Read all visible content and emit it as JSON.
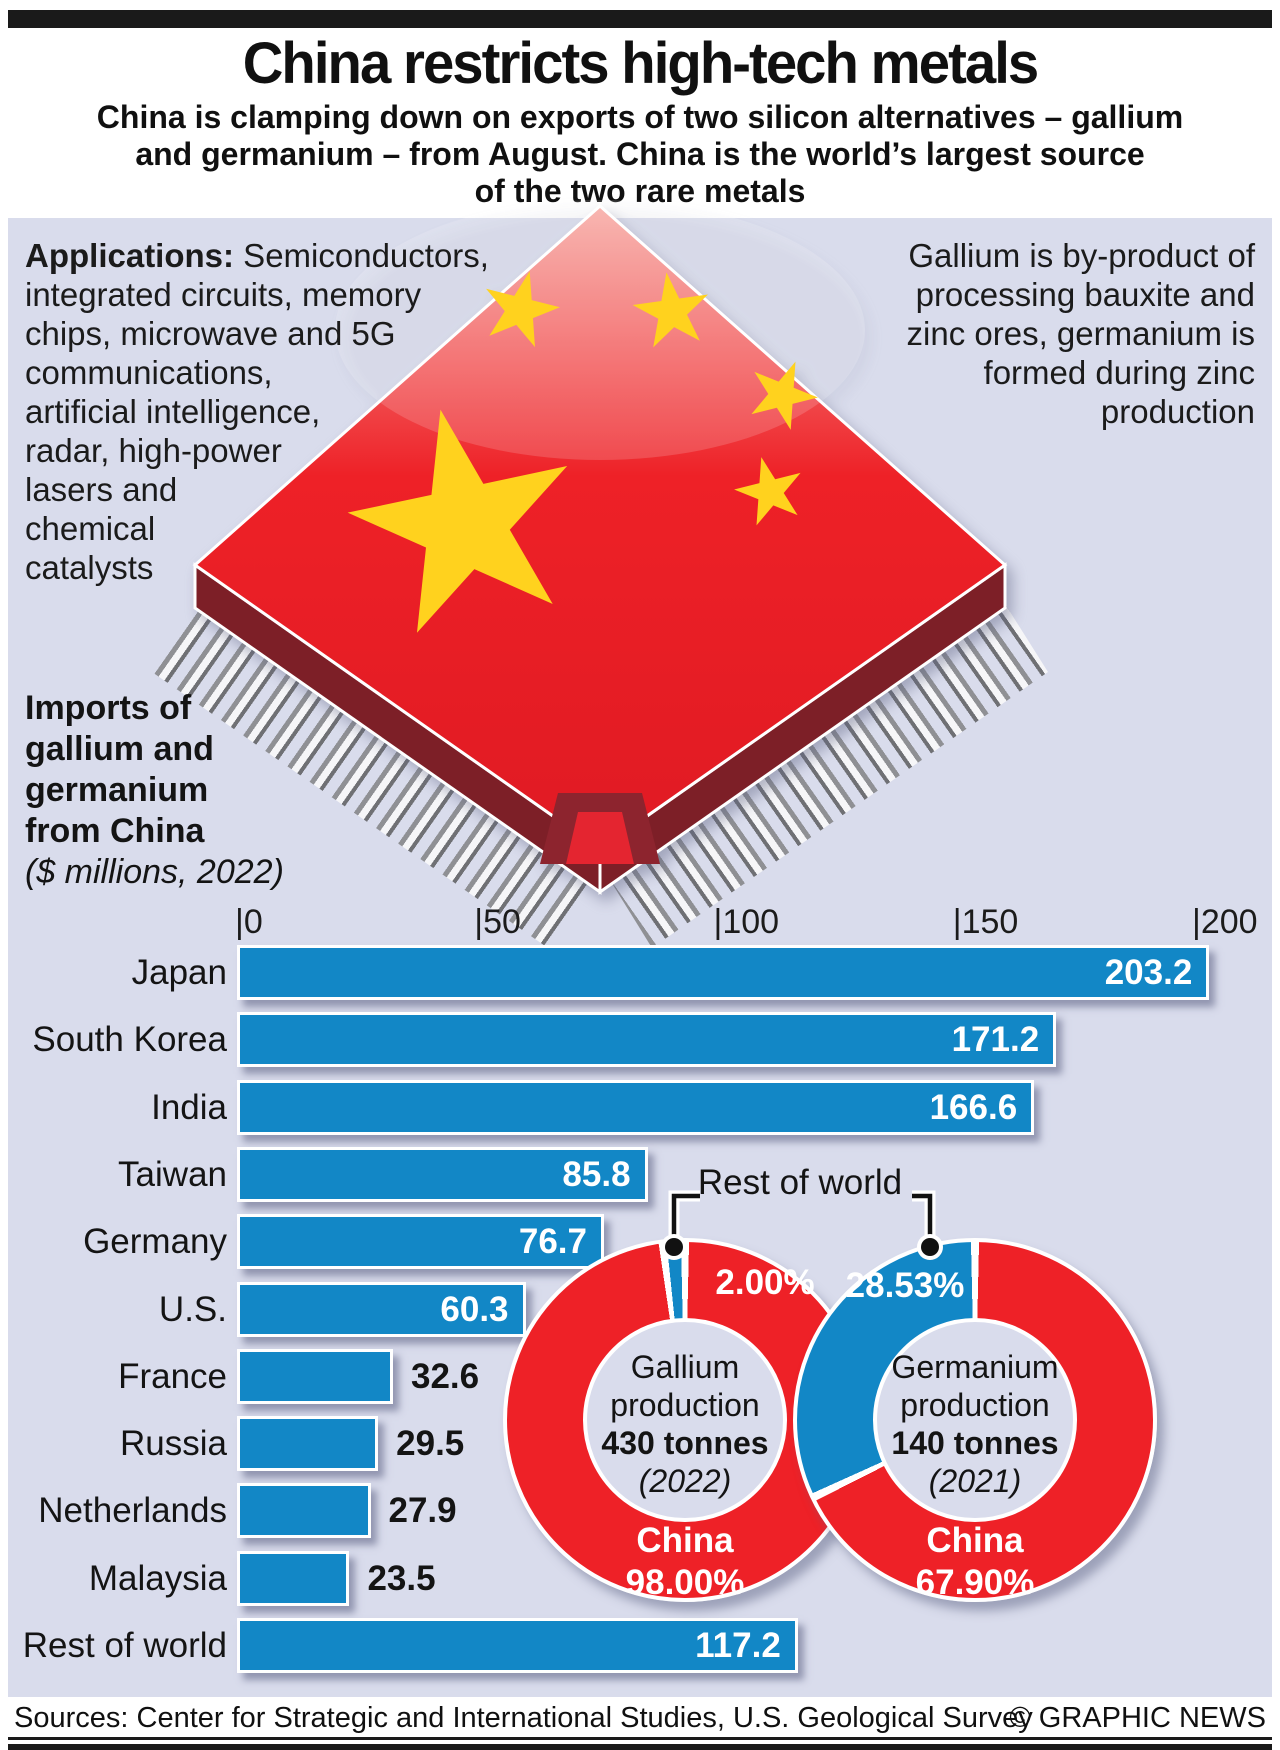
{
  "colors": {
    "accent_blue": "#1287c6",
    "flag_red": "#ee2127",
    "dark_red": "#7d1f27",
    "star_yellow": "#ffd21e",
    "panel_lavender": "#d9dcec",
    "rule_black": "#1a1a1a"
  },
  "header": {
    "title": "China restricts high-tech metals",
    "subtitle_lines": [
      "China is clamping down on exports of two silicon alternatives – gallium",
      "and germanium – from August. China is the world’s largest source",
      "of the two rare metals"
    ]
  },
  "applications": {
    "label": "Applications:",
    "line1_rest": " Semiconductors,",
    "lines": [
      "integrated circuits, memory",
      "chips, microwave and 5G",
      "communications,",
      "artificial intelligence,",
      "radar, high-power",
      "lasers and",
      "chemical",
      "catalysts"
    ]
  },
  "byproduct_note": {
    "lines": [
      "Gallium is by-product of",
      "processing bauxite and",
      "zinc ores, germanium is",
      "formed during zinc",
      "production"
    ]
  },
  "chip": {
    "description": "computer chip with Chinese flag top and metallic pins"
  },
  "bar_chart_heading": {
    "lines": [
      "Imports of",
      "gallium and",
      "germanium",
      "from China"
    ],
    "note": "($ millions, 2022)"
  },
  "donut_section": {
    "callout_label": "Rest of world",
    "gallium": {
      "title_lines": [
        "Gallium",
        "production"
      ],
      "amount": "430 tonnes",
      "year": "(2022)",
      "china_label": "China",
      "china_pct_display": "98.00%",
      "rest_pct_display": "2.00%"
    },
    "germanium": {
      "title_lines": [
        "Germanium",
        "production"
      ],
      "amount": "140 tonnes",
      "year": "(2021)",
      "china_label": "China",
      "china_pct_display": "67.90%",
      "rest_pct_display": "28.53%"
    }
  },
  "chart_data": [
    {
      "type": "bar",
      "orientation": "horizontal",
      "title": "Imports of gallium and germanium from China ($ millions, 2022)",
      "categories": [
        "Japan",
        "South Korea",
        "India",
        "Taiwan",
        "Germany",
        "U.S.",
        "France",
        "Russia",
        "Netherlands",
        "Malaysia",
        "Rest of world"
      ],
      "values": [
        203.2,
        171.2,
        166.6,
        85.8,
        76.7,
        60.3,
        32.6,
        29.5,
        27.9,
        23.5,
        117.2
      ],
      "xlabel": "$ millions",
      "ylabel": "",
      "xlim": [
        0,
        200
      ],
      "x_ticks": [
        0,
        50,
        100,
        150,
        200
      ],
      "grid": false,
      "bar_color": "#1287c6"
    },
    {
      "type": "pie",
      "title": "Gallium production 430 tonnes (2022)",
      "slices": [
        {
          "label": "China",
          "value": 98.0,
          "color": "#ee2127"
        },
        {
          "label": "Rest of world",
          "value": 2.0,
          "color": "#1287c6"
        }
      ]
    },
    {
      "type": "pie",
      "title": "Germanium production 140 tonnes (2021)",
      "slices": [
        {
          "label": "China",
          "value": 67.9,
          "color": "#ee2127"
        },
        {
          "label": "Rest of world",
          "value": 28.53,
          "color": "#1287c6"
        }
      ]
    }
  ],
  "footer": {
    "sources": "Sources: Center for Strategic and International Studies, U.S. Geological Survey",
    "credit": "© GRAPHIC NEWS"
  }
}
